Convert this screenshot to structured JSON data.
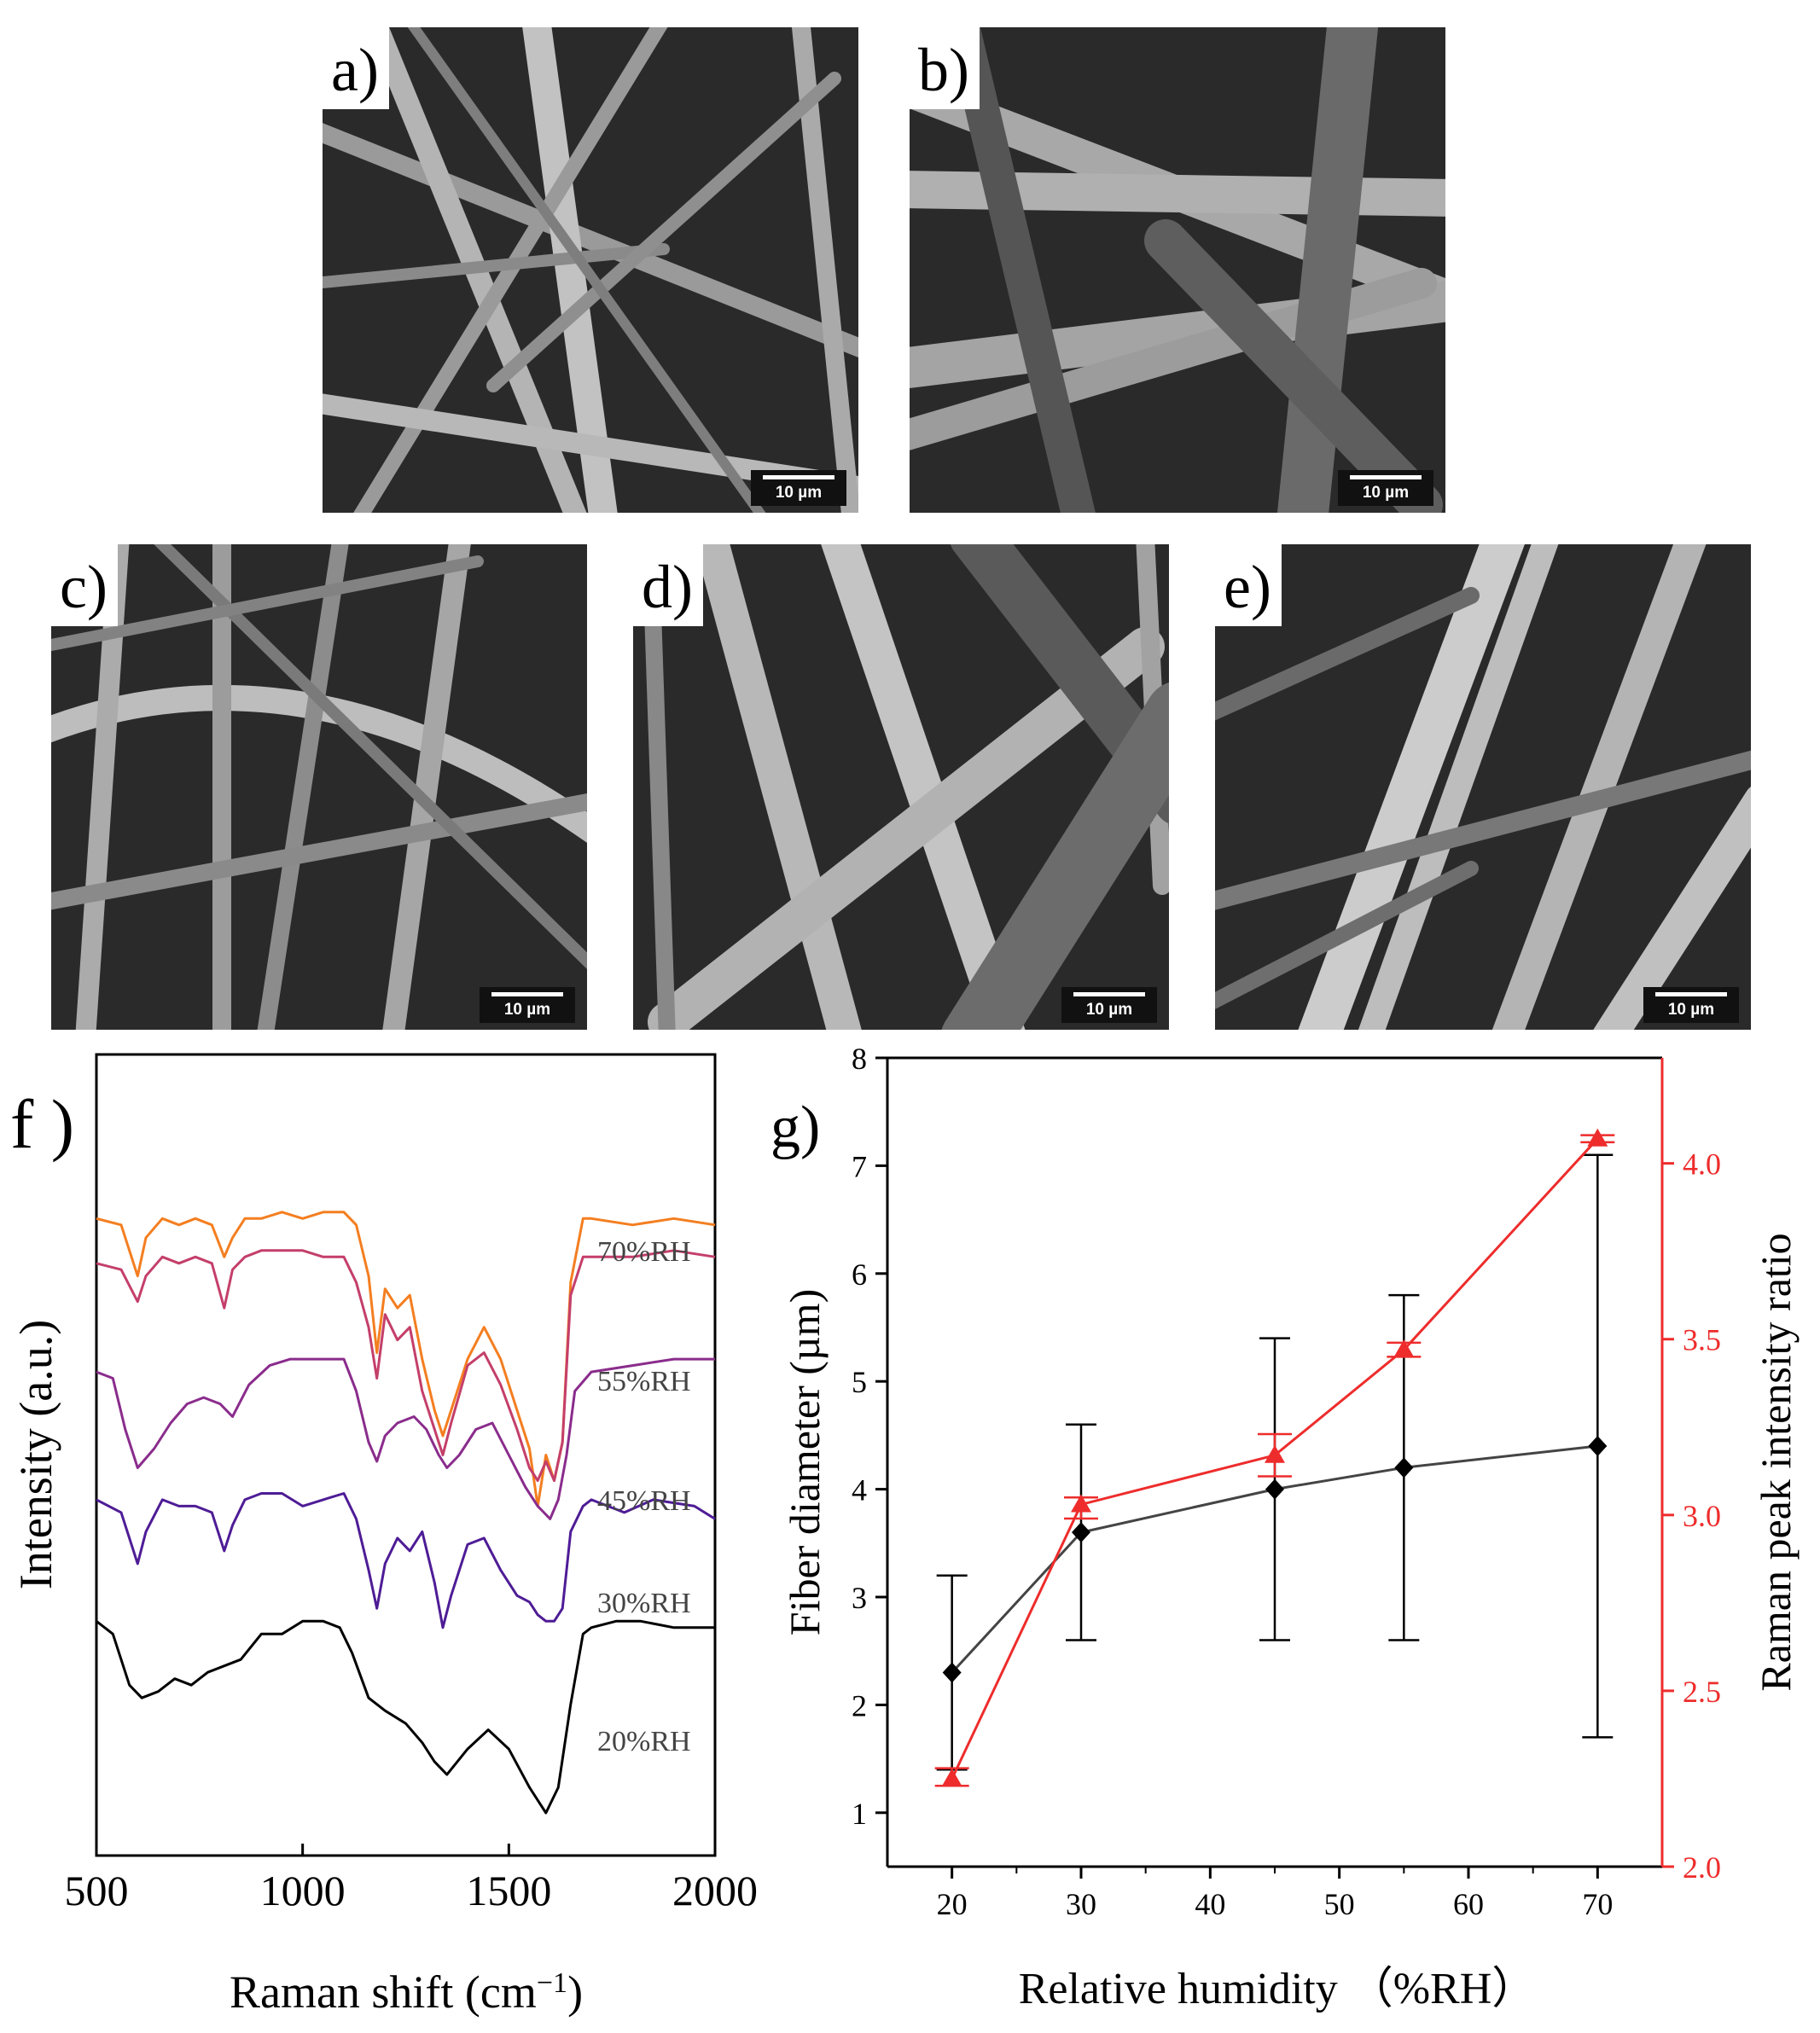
{
  "sem_panels": [
    {
      "label": "a)",
      "scale": "10 µm"
    },
    {
      "label": "b)",
      "scale": "10 µm"
    },
    {
      "label": "c)",
      "scale": "10 µm"
    },
    {
      "label": "d)",
      "scale": "10 µm"
    },
    {
      "label": "e)",
      "scale": "10 µm"
    }
  ],
  "colors": {
    "black": "#000000",
    "red": "#ee2c2c",
    "sem_bg": "#2a2a2a"
  },
  "chart_data": [
    {
      "panel": "f )",
      "type": "line",
      "xlabel": "Raman shift (cm",
      "xlabel_sup": "−1",
      "xlabel_end": ")",
      "ylabel": "Intensity (a.u.)",
      "xlim": [
        500,
        2000
      ],
      "xticks": [
        500,
        1000,
        1500,
        2000
      ],
      "series": [
        {
          "name": "70%RH",
          "color": "#f47e20",
          "x": [
            500,
            560,
            600,
            620,
            660,
            700,
            740,
            780,
            810,
            830,
            860,
            900,
            950,
            1000,
            1050,
            1100,
            1130,
            1160,
            1180,
            1200,
            1230,
            1260,
            1290,
            1320,
            1340,
            1360,
            1400,
            1440,
            1480,
            1520,
            1550,
            1570,
            1590,
            1610,
            1630,
            1650,
            1680,
            1700,
            1800,
            1900,
            2000
          ],
          "y": [
            23,
            24,
            32,
            26,
            23,
            24,
            23,
            24,
            29,
            26,
            23,
            23,
            22,
            23,
            22,
            22,
            24,
            32,
            44,
            34,
            37,
            35,
            45,
            53,
            57,
            53,
            45,
            40,
            45,
            53,
            59,
            68,
            60,
            64,
            58,
            33,
            23,
            23,
            24,
            23,
            24
          ]
        },
        {
          "name": "55%RH",
          "color": "#c43f6a",
          "x": [
            500,
            560,
            600,
            620,
            660,
            700,
            740,
            780,
            810,
            830,
            860,
            900,
            950,
            1000,
            1050,
            1100,
            1130,
            1160,
            1180,
            1200,
            1230,
            1260,
            1290,
            1320,
            1340,
            1360,
            1400,
            1440,
            1480,
            1520,
            1550,
            1570,
            1590,
            1610,
            1630,
            1650,
            1680,
            1700,
            1800,
            1900,
            2000
          ],
          "y": [
            30,
            31,
            36,
            32,
            29,
            30,
            29,
            30,
            37,
            31,
            29,
            28,
            28,
            28,
            29,
            29,
            33,
            40,
            48,
            38,
            42,
            40,
            50,
            56,
            60,
            55,
            46,
            44,
            49,
            56,
            62,
            64,
            61,
            64,
            58,
            35,
            29,
            29,
            29,
            28,
            29
          ]
        },
        {
          "name": "45%RH",
          "color": "#8a2c8c",
          "x": [
            500,
            540,
            570,
            600,
            640,
            680,
            720,
            760,
            800,
            830,
            870,
            920,
            970,
            1020,
            1060,
            1100,
            1130,
            1160,
            1180,
            1200,
            1230,
            1270,
            1300,
            1330,
            1350,
            1380,
            1420,
            1460,
            1500,
            1540,
            1570,
            1600,
            1620,
            1640,
            1660,
            1700,
            1800,
            1900,
            2000
          ],
          "y": [
            47,
            48,
            56,
            62,
            59,
            55,
            52,
            51,
            52,
            54,
            49,
            46,
            45,
            45,
            45,
            45,
            50,
            58,
            61,
            57,
            55,
            54,
            56,
            60,
            62,
            60,
            56,
            55,
            60,
            65,
            68,
            70,
            67,
            60,
            50,
            47,
            46,
            45,
            45
          ]
        },
        {
          "name": "30%RH",
          "color": "#4e1c96",
          "x": [
            500,
            560,
            600,
            620,
            660,
            700,
            740,
            780,
            810,
            830,
            860,
            900,
            950,
            1000,
            1050,
            1100,
            1130,
            1160,
            1180,
            1200,
            1230,
            1260,
            1290,
            1320,
            1340,
            1360,
            1400,
            1440,
            1480,
            1520,
            1550,
            1570,
            1590,
            1610,
            1630,
            1650,
            1680,
            1700,
            1780,
            1850,
            1950,
            2000
          ],
          "y": [
            67,
            69,
            77,
            72,
            67,
            68,
            68,
            69,
            75,
            71,
            67,
            66,
            66,
            68,
            67,
            66,
            70,
            78,
            84,
            77,
            73,
            75,
            72,
            80,
            87,
            82,
            74,
            73,
            78,
            82,
            83,
            85,
            86,
            86,
            84,
            72,
            68,
            67,
            69,
            67,
            68,
            70
          ]
        },
        {
          "name": "20%RH",
          "color": "#000000",
          "x": [
            500,
            540,
            580,
            610,
            650,
            690,
            730,
            770,
            810,
            850,
            900,
            950,
            1000,
            1050,
            1090,
            1120,
            1160,
            1200,
            1250,
            1290,
            1320,
            1350,
            1400,
            1450,
            1500,
            1550,
            1590,
            1620,
            1650,
            1680,
            1700,
            1760,
            1820,
            1900,
            2000
          ],
          "y": [
            86,
            88,
            96,
            98,
            97,
            95,
            96,
            94,
            93,
            92,
            88,
            88,
            86,
            86,
            87,
            91,
            98,
            100,
            102,
            105,
            108,
            110,
            106,
            103,
            106,
            112,
            116,
            112,
            99,
            88,
            87,
            86,
            86,
            87,
            87
          ]
        }
      ],
      "annotations": [
        "70%RH",
        "55%RH",
        "45%RH",
        "30%RH",
        "20%RH"
      ]
    },
    {
      "panel": "g)",
      "type": "line",
      "xlabel": "Relative humidity （%RH）",
      "ylabel_left": "Fiber diameter (µm)",
      "ylabel_right": "Raman peak intensity ratio",
      "xlim": [
        15,
        75
      ],
      "ylim_left": [
        0.5,
        8
      ],
      "ylim_right": [
        2.0,
        4.3
      ],
      "xticks": [
        20,
        30,
        40,
        50,
        60,
        70
      ],
      "yticks_left": [
        1,
        2,
        3,
        4,
        5,
        6,
        7,
        8
      ],
      "yticks_right": [
        "2.0",
        "2.5",
        "3.0",
        "3.5",
        "4.0"
      ],
      "series": [
        {
          "name": "Fiber diameter",
          "axis": "left",
          "color": "#000000",
          "marker": "diamond",
          "x": [
            20,
            30,
            45,
            55,
            70
          ],
          "y": [
            2.3,
            3.6,
            4.0,
            4.2,
            4.4
          ],
          "err_low": [
            1.4,
            2.6,
            2.6,
            2.6,
            1.7
          ],
          "err_high": [
            3.2,
            4.6,
            5.4,
            5.8,
            7.1
          ]
        },
        {
          "name": "Raman peak intensity ratio",
          "axis": "right",
          "color": "#ee2c2c",
          "marker": "triangle",
          "x": [
            20,
            30,
            45,
            55,
            70
          ],
          "y": [
            2.25,
            3.03,
            3.17,
            3.47,
            4.07
          ],
          "err_low": [
            2.23,
            2.99,
            3.11,
            3.45,
            4.06
          ],
          "err_high": [
            2.28,
            3.05,
            3.23,
            3.49,
            4.08
          ]
        }
      ]
    }
  ]
}
